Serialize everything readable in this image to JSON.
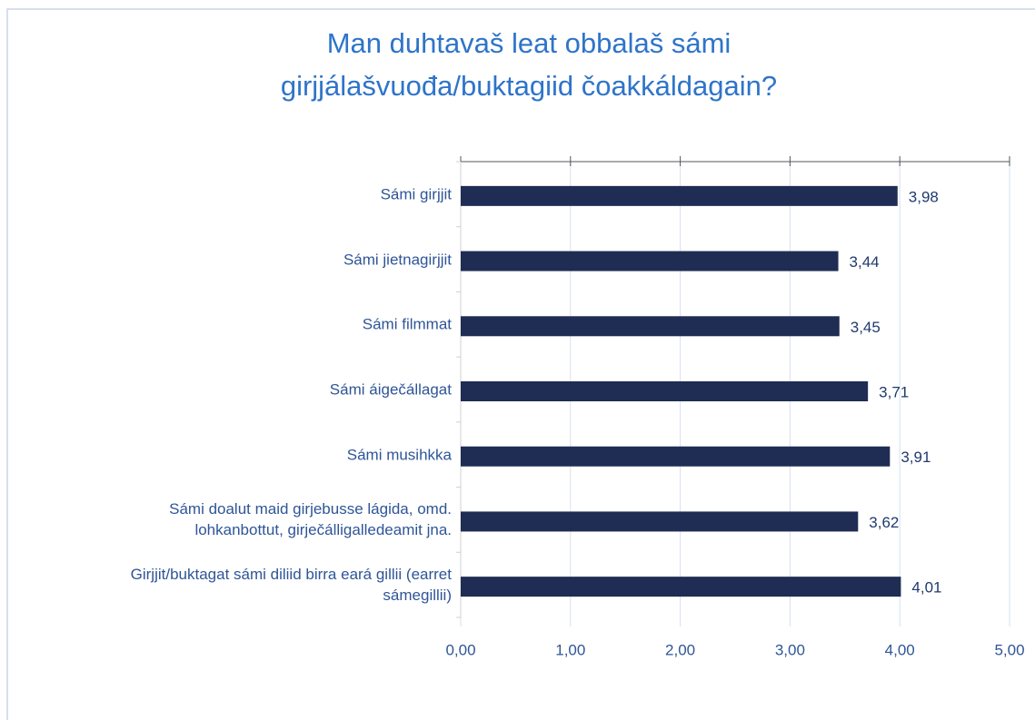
{
  "chart_data": {
    "type": "bar",
    "orientation": "horizontal",
    "title": "Man duhtavaš leat  obbalaš sámi\ngirjjálašvuođa/buktagiid čoakkáldagain?",
    "categories": [
      "Sámi girjjit",
      "Sámi jietnagirjjit",
      "Sámi filmmat",
      "Sámi áigečállagat",
      "Sámi musihkka",
      "Sámi doalut maid girjebusse lágida, omd.\nlohkanbottut, girječálligalledeamit jna.",
      "Girjjit/buktagat sámi diliid birra eará gillii (earret\nsámegillii)"
    ],
    "values": [
      3.98,
      3.44,
      3.45,
      3.71,
      3.91,
      3.62,
      4.01
    ],
    "value_labels": [
      "3,98",
      "3,44",
      "3,45",
      "3,71",
      "3,91",
      "3,62",
      "4,01"
    ],
    "color": "#1f2d54",
    "xlim": [
      0,
      5
    ],
    "xticks": [
      {
        "value": 0,
        "label": "0,00"
      },
      {
        "value": 1,
        "label": "1,00"
      },
      {
        "value": 2,
        "label": "2,00"
      },
      {
        "value": 3,
        "label": "3,00"
      },
      {
        "value": 4,
        "label": "4,00"
      },
      {
        "value": 5,
        "label": "5,00"
      }
    ],
    "grid": true
  }
}
